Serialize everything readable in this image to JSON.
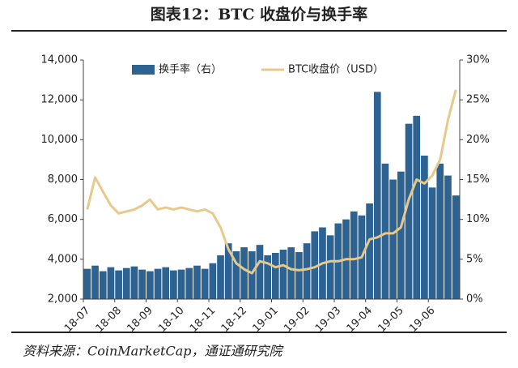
{
  "chart_data": {
    "type": "bar_line",
    "title": "图表12：BTC 收盘价与换手率",
    "source": "资料来源：CoinMarketCap，通证通研究院",
    "categories": [
      "18-07",
      null,
      null,
      null,
      "18-08",
      null,
      null,
      null,
      "18-09",
      null,
      null,
      null,
      "18-10",
      null,
      null,
      null,
      "18-11",
      null,
      null,
      null,
      "18-12",
      null,
      null,
      null,
      "19-01",
      null,
      null,
      null,
      "19-02",
      null,
      null,
      null,
      "19-03",
      null,
      null,
      null,
      "19-04",
      null,
      null,
      null,
      "19-05",
      null,
      null,
      null,
      "19-06",
      null,
      null,
      null
    ],
    "series": [
      {
        "name": "换手率（右）",
        "type": "bar",
        "axis": "y2",
        "color": "#2e6391",
        "values": [
          3.8,
          4.2,
          3.5,
          4.0,
          3.6,
          3.9,
          4.1,
          3.7,
          3.5,
          3.8,
          4.0,
          3.6,
          3.7,
          3.9,
          4.2,
          3.8,
          4.5,
          5.5,
          7.0,
          6.0,
          6.5,
          6.0,
          6.8,
          5.5,
          5.8,
          6.2,
          6.5,
          5.9,
          7.0,
          8.5,
          9.0,
          8.0,
          9.5,
          10.0,
          11.0,
          10.5,
          12.0,
          26.0,
          17.0,
          15.0,
          16.0,
          22.0,
          23.0,
          18.0,
          14.0,
          17.0,
          15.5,
          13.0
        ]
      },
      {
        "name": "BTC收盘价（USD）",
        "type": "line",
        "color": "#e8c98a",
        "values": [
          6500,
          8100,
          7400,
          6700,
          6300,
          6400,
          6500,
          6700,
          7000,
          6500,
          6600,
          6500,
          6600,
          6500,
          6400,
          6500,
          6300,
          5600,
          4500,
          3800,
          3500,
          3300,
          3900,
          3800,
          3600,
          3700,
          3500,
          3450,
          3500,
          3600,
          3800,
          3900,
          3900,
          4000,
          4000,
          4100,
          5000,
          5100,
          5300,
          5300,
          5600,
          7000,
          8000,
          7800,
          8200,
          9000,
          11000,
          12500
        ]
      }
    ],
    "ylim": [
      2000,
      14000
    ],
    "yticks": [
      {
        "value": 2000,
        "label": "2,000"
      },
      {
        "value": 4000,
        "label": "4,000"
      },
      {
        "value": 6000,
        "label": "6,000"
      },
      {
        "value": 8000,
        "label": "8,000"
      },
      {
        "value": 10000,
        "label": "10,000"
      },
      {
        "value": 12000,
        "label": "12,000"
      },
      {
        "value": 14000,
        "label": "14,000"
      }
    ],
    "y2lim": [
      0,
      30
    ],
    "y2ticks": [
      {
        "value": 0,
        "label": "0%"
      },
      {
        "value": 5,
        "label": "5%"
      },
      {
        "value": 10,
        "label": "10%"
      },
      {
        "value": 15,
        "label": "15%"
      },
      {
        "value": 20,
        "label": "20%"
      },
      {
        "value": 25,
        "label": "25%"
      },
      {
        "value": 30,
        "label": "30%"
      }
    ],
    "legend": "top"
  }
}
